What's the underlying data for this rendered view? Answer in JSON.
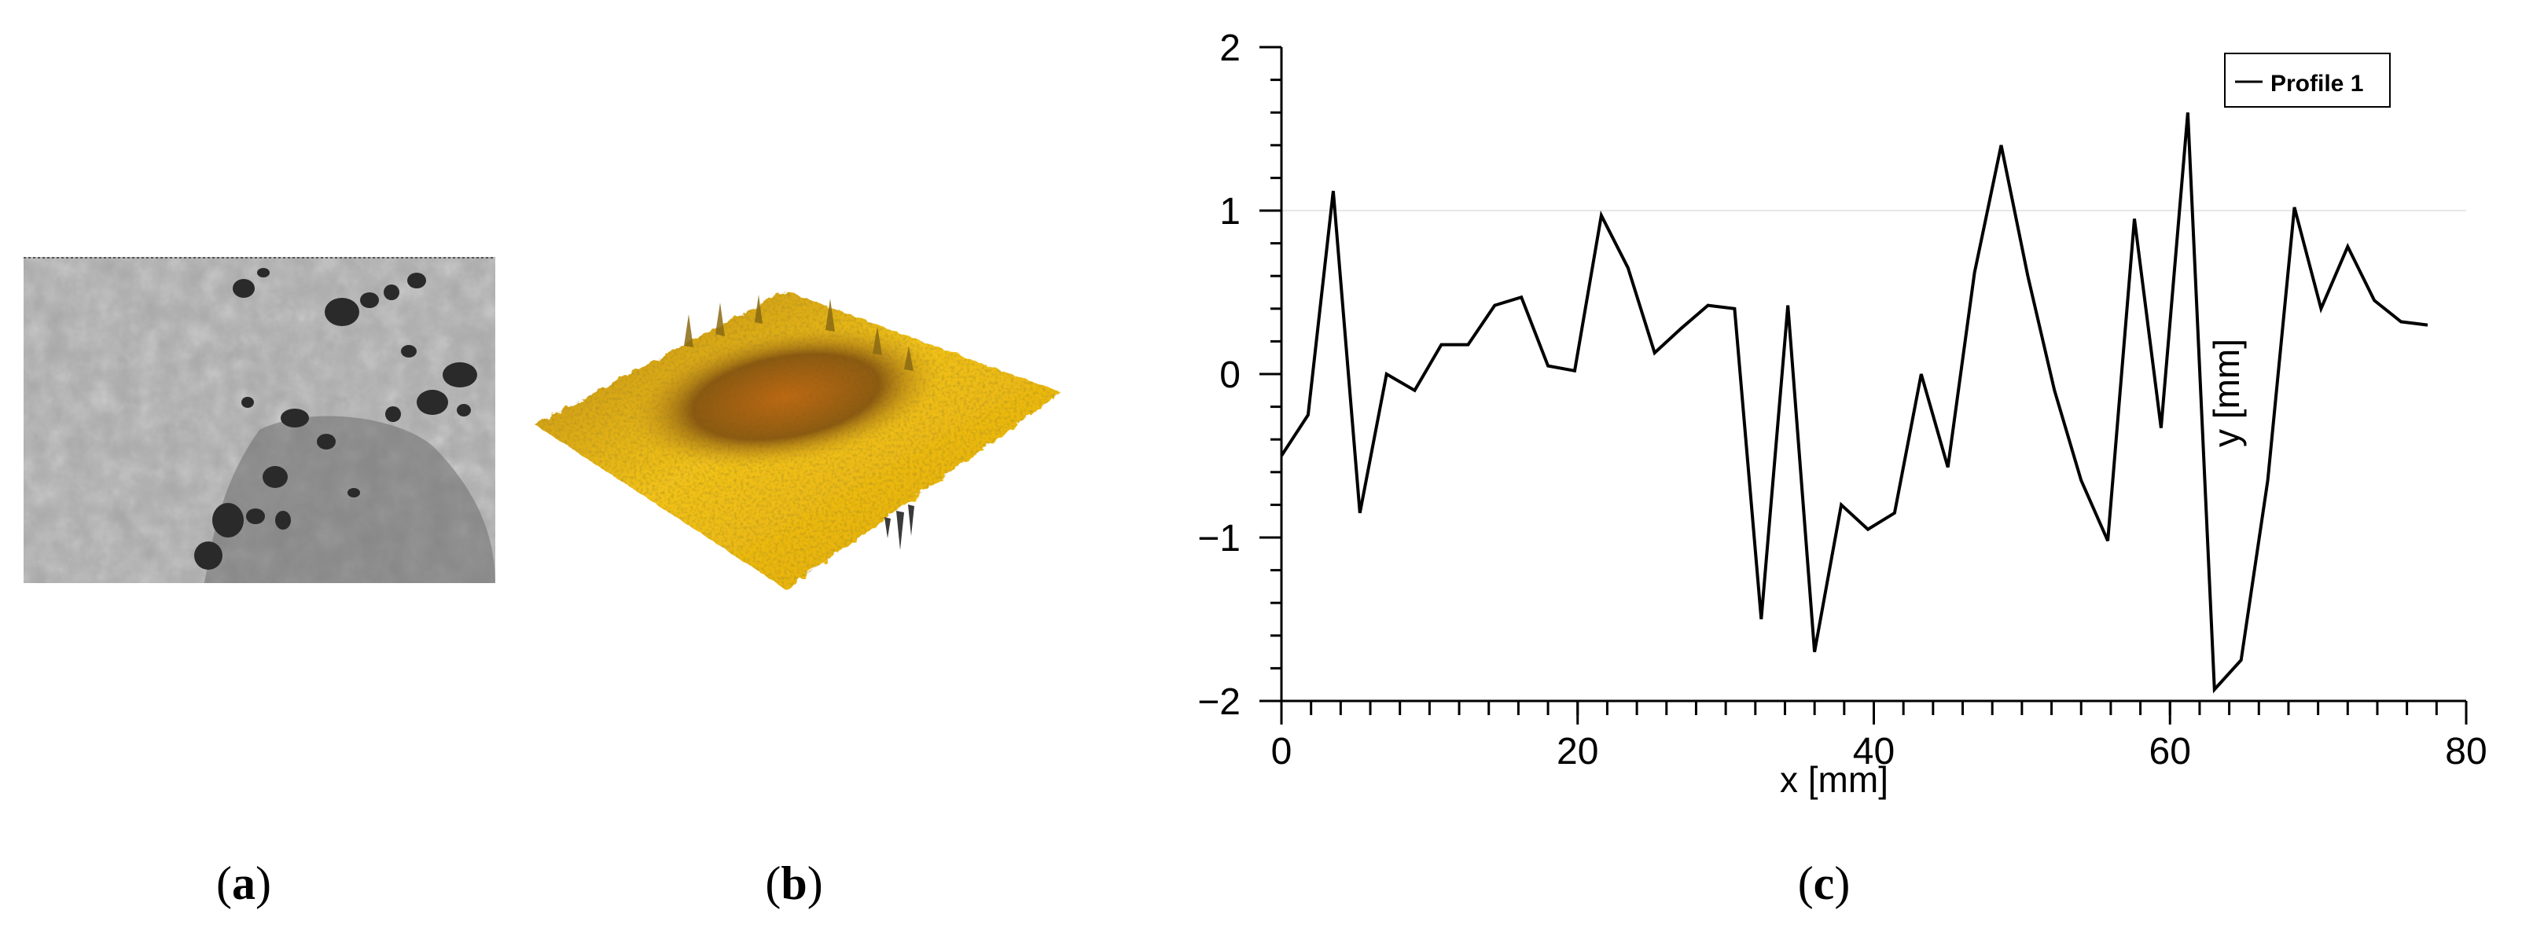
{
  "figure": {
    "panels": [
      {
        "label": "a",
        "description": "grey surface micrograph"
      },
      {
        "label": "b",
        "description": "yellow 3D surface topography"
      },
      {
        "label": "c",
        "description": "profile line plot"
      }
    ]
  },
  "colors": {
    "line": "#000000",
    "surface_light": "#f2c21a",
    "surface_dark": "#7a4a10",
    "photo_gray": "#a9a9a9"
  },
  "chart_data": {
    "type": "line",
    "title": "",
    "xlabel": "x [mm]",
    "ylabel": "y [mm]",
    "xlim": [
      0,
      80
    ],
    "ylim": [
      -2,
      2
    ],
    "xticks": [
      0,
      20,
      40,
      60,
      80
    ],
    "yticks": [
      -2,
      -1,
      0,
      1,
      2
    ],
    "ytick_labels": [
      "−2",
      "−1",
      "0",
      "1",
      "2"
    ],
    "grid": false,
    "legend_position": "top-right",
    "series": [
      {
        "name": "Profile 1",
        "x": [
          0,
          1.8,
          3.5,
          5.3,
          7.1,
          9.0,
          10.8,
          12.6,
          14.4,
          16.2,
          18.0,
          19.8,
          21.6,
          23.4,
          25.2,
          27.0,
          28.8,
          30.6,
          32.4,
          34.2,
          36.0,
          37.8,
          39.6,
          41.4,
          43.2,
          45.0,
          46.8,
          48.6,
          50.4,
          52.2,
          54.0,
          55.8,
          57.6,
          59.4,
          61.2,
          63.0,
          64.8,
          66.6,
          68.4,
          70.2,
          72.0,
          73.8,
          75.6,
          77.4
        ],
        "y": [
          -0.5,
          -0.25,
          1.12,
          -0.85,
          0.0,
          -0.1,
          0.18,
          0.18,
          0.42,
          0.47,
          0.05,
          0.02,
          0.97,
          0.65,
          0.13,
          0.28,
          0.42,
          0.4,
          -1.5,
          0.42,
          -1.7,
          -0.8,
          -0.95,
          -0.85,
          0.0,
          -0.57,
          0.62,
          1.4,
          0.6,
          -0.1,
          -0.65,
          -1.02,
          0.95,
          -0.33,
          1.6,
          -1.93,
          -1.75,
          -0.65,
          1.02,
          0.4,
          0.78,
          0.45,
          0.32,
          0.3
        ]
      }
    ]
  }
}
